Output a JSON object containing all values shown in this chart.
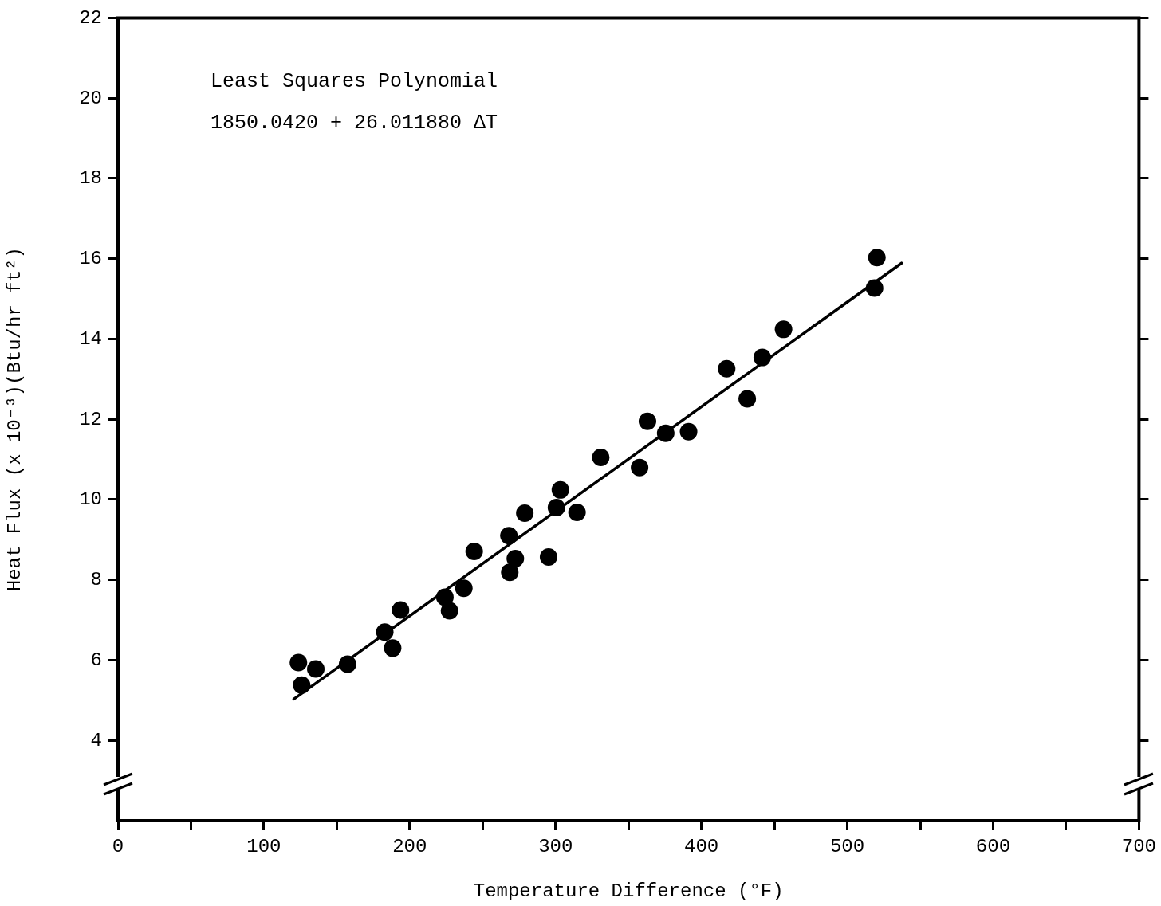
{
  "chart_data": {
    "type": "scatter",
    "xlabel": "Temperature Difference (°F)",
    "ylabel": "Heat Flux (x 10⁻³)(Btu/hr ft²)",
    "annotations": [
      "Least Squares Polynomial",
      "1850.0420 + 26.011880 ΔT"
    ],
    "x": [
      123.7,
      125.9,
      135.6,
      157.4,
      182.9,
      188.3,
      193.7,
      224.1,
      227.3,
      237.1,
      244.2,
      268.6,
      268.0,
      272.4,
      278.9,
      295.2,
      300.6,
      303.3,
      314.7,
      331.0,
      357.6,
      363.0,
      375.5,
      391.2,
      417.3,
      431.4,
      441.7,
      456.3,
      518.7,
      520.3
    ],
    "series": [
      {
        "type": "scatter",
        "color": "#000000",
        "marker": "circle",
        "values": [
          5.94,
          5.38,
          5.78,
          5.9,
          6.7,
          6.3,
          7.25,
          7.57,
          7.23,
          7.79,
          8.71,
          8.19,
          9.1,
          8.53,
          9.66,
          8.57,
          9.8,
          10.24,
          9.68,
          11.05,
          10.8,
          11.95,
          11.65,
          11.69,
          13.26,
          12.51,
          13.54,
          14.24,
          15.27,
          16.03
        ]
      },
      {
        "type": "line",
        "color": "#000000",
        "marker": "none",
        "line_style": "solid",
        "x": [
          120.5,
          537.2
        ],
        "values": [
          5.03,
          15.89
        ]
      }
    ],
    "xlim": [
      0,
      700
    ],
    "xticks": [
      0,
      {
        "value": 50,
        "label": null
      },
      100,
      {
        "value": 150,
        "label": null
      },
      200,
      {
        "value": 250,
        "label": null
      },
      300,
      {
        "value": 350,
        "label": null
      },
      400,
      {
        "value": 450,
        "label": null
      },
      500,
      {
        "value": 550,
        "label": null
      },
      600,
      {
        "value": 650,
        "label": null
      },
      700
    ],
    "ylim": [
      2,
      22
    ],
    "yticks": [
      4,
      6,
      8,
      10,
      12,
      14,
      16,
      18,
      20,
      22
    ],
    "grid": false,
    "legend": false
  }
}
